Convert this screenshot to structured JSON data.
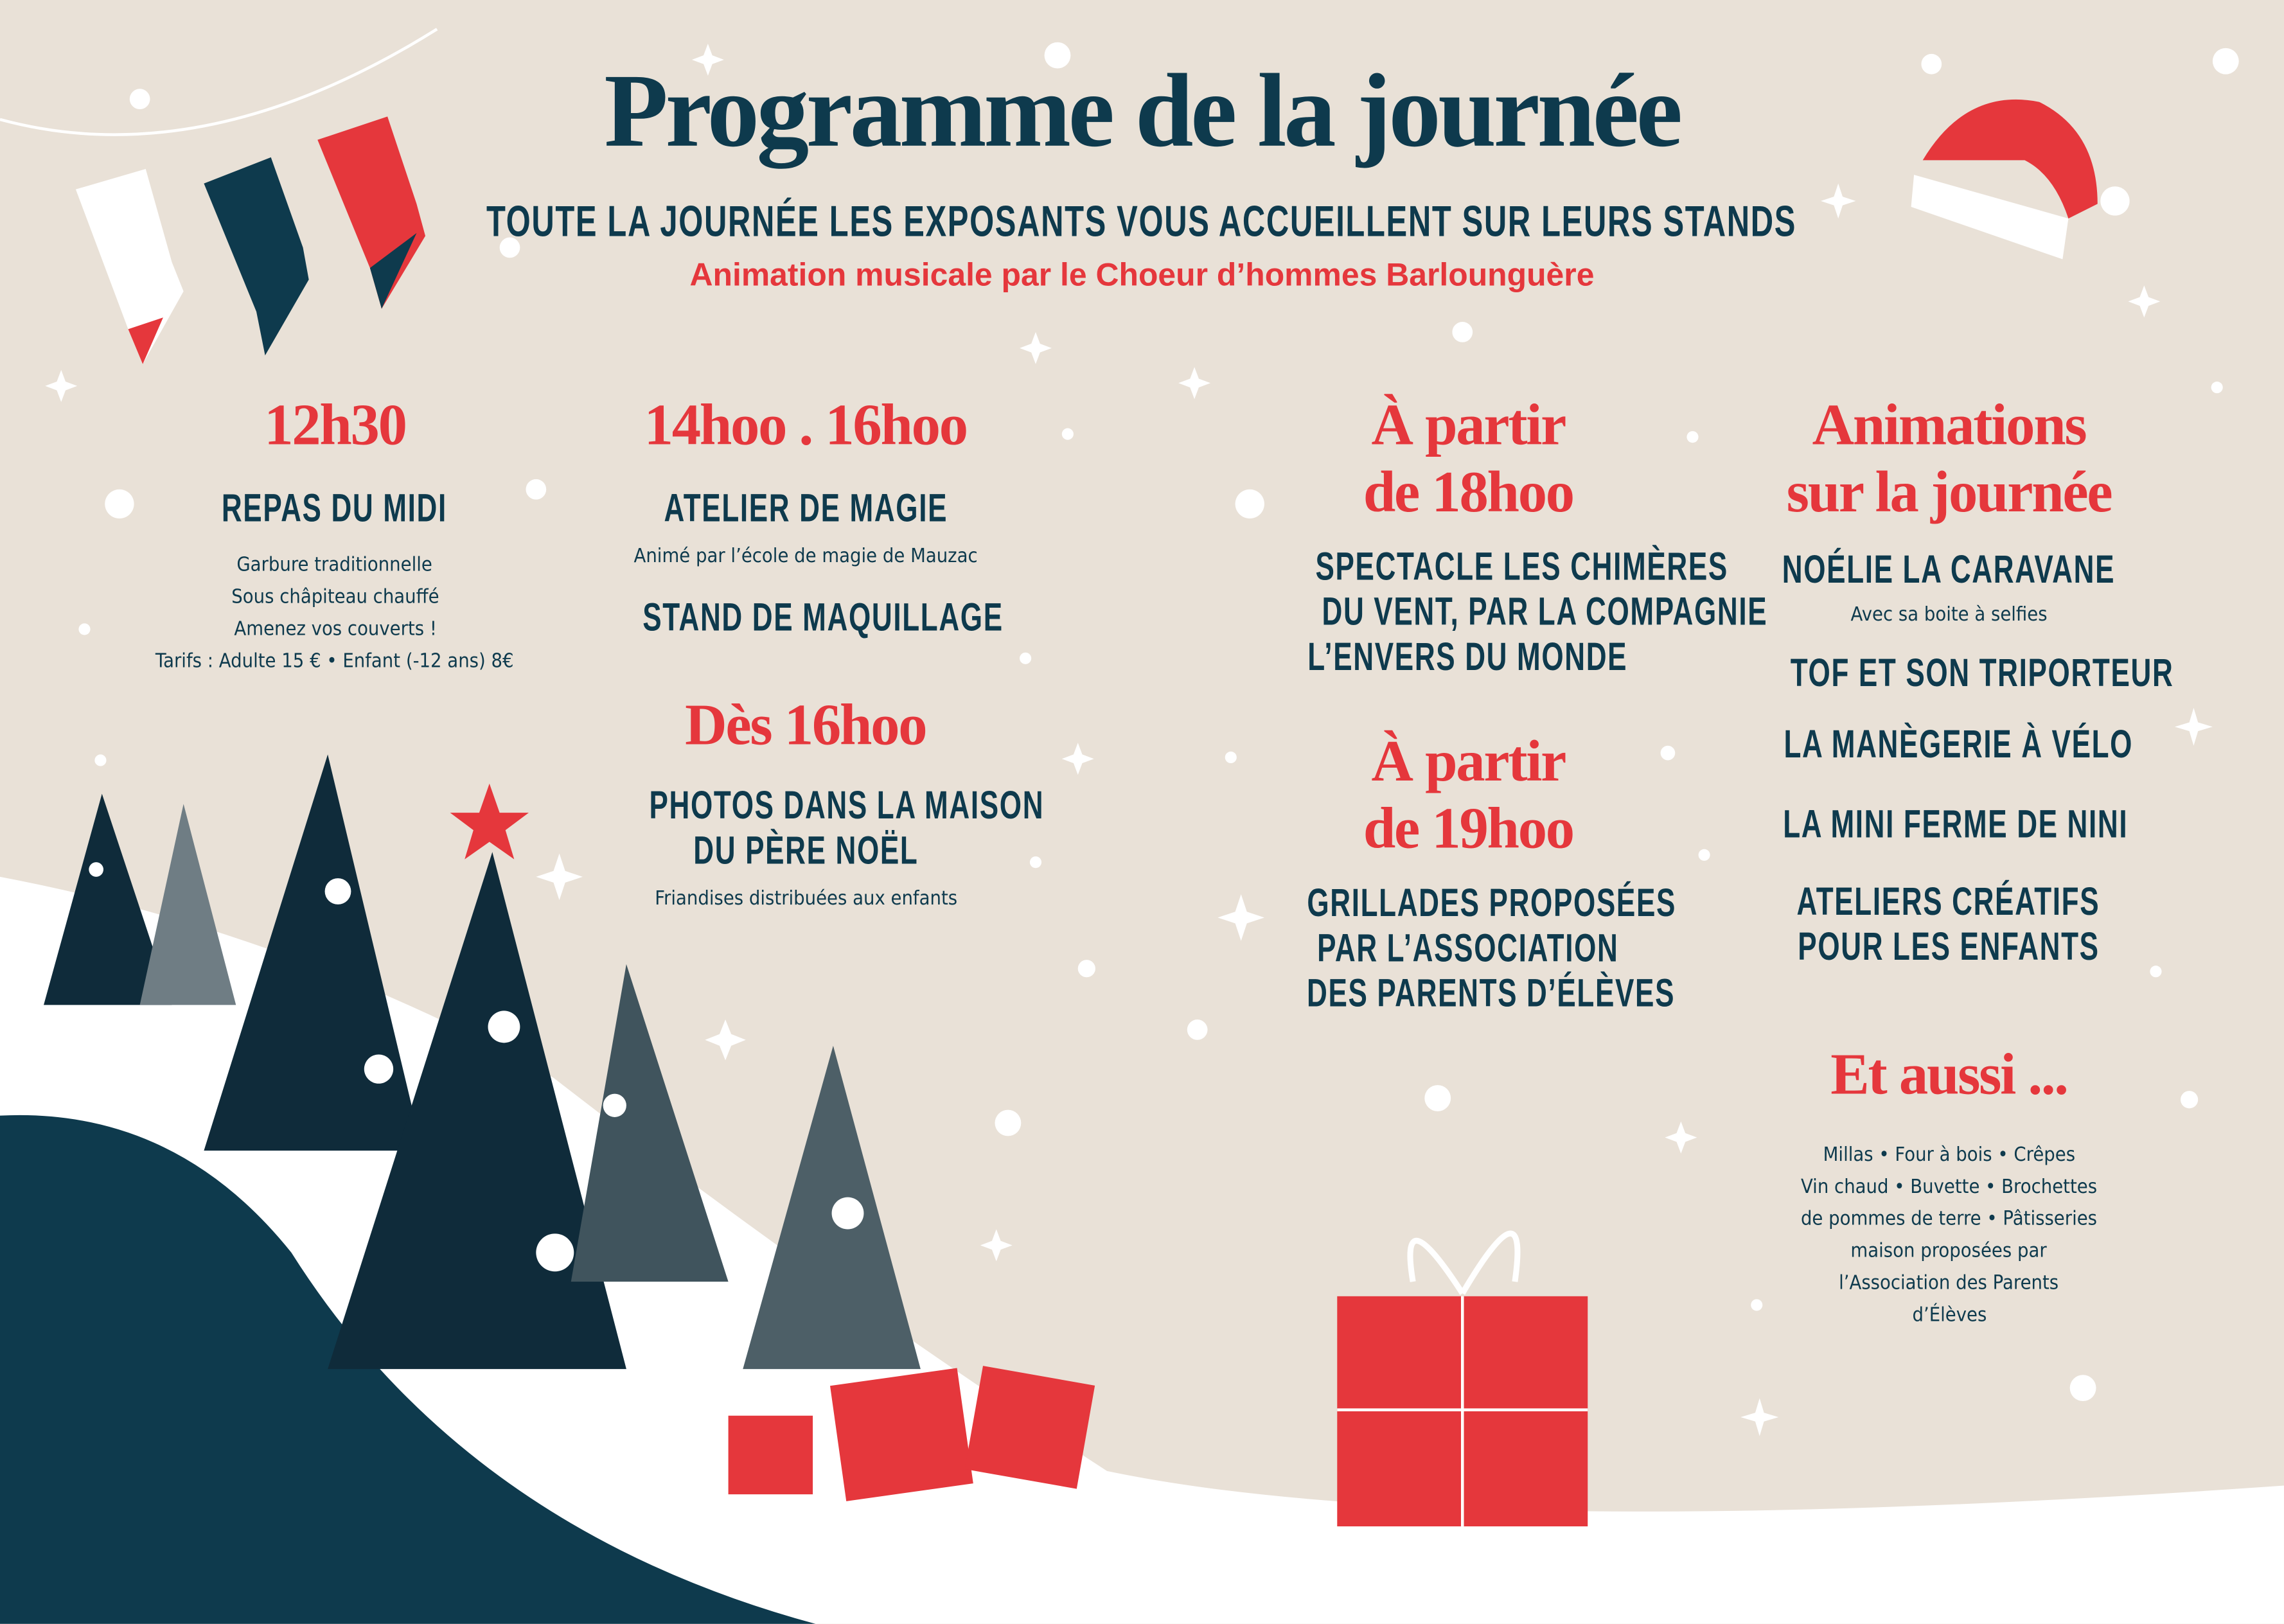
{
  "header": {
    "title": "Programme de la journée",
    "subtitle": "TOUTE LA JOURNÉE LES EXPOSANTS VOUS ACCUEILLENT SUR LEURS STANDS",
    "tagline": "Animation musicale par le Choeur d’hommes Barlounguère"
  },
  "col1": {
    "time": "12h30",
    "activity": "REPAS DU MIDI",
    "details": [
      "Garbure traditionnelle",
      "Sous châpiteau chauffé",
      "Amenez vos couverts !",
      "Tarifs : Adulte 15 € • Enfant (-12 ans) 8€"
    ]
  },
  "col2": {
    "time": "14hoo . 16hoo",
    "activity1": "ATELIER DE MAGIE",
    "detail1": "Animé par l’école de magie de Mauzac",
    "activity2": "STAND DE MAQUILLAGE",
    "time2": "Dès 16hoo",
    "activity3": [
      "PHOTOS DANS LA MAISON",
      "DU PÈRE NOËL"
    ],
    "detail3": "Friandises distribuées aux enfants"
  },
  "col3": {
    "time1": [
      "À partir",
      "de 18hoo"
    ],
    "activity1": [
      "SPECTACLE LES CHIMÈRES",
      "DU VENT, PAR LA COMPAGNIE",
      "L’ENVERS DU MONDE"
    ],
    "time2": [
      "À partir",
      "de 19hoo"
    ],
    "activity2": [
      "GRILLADES PROPOSÉES",
      "PAR L’ASSOCIATION",
      "DES PARENTS D’ÉLÈVES"
    ]
  },
  "col4": {
    "heading": [
      "Animations",
      "sur la journée"
    ],
    "items": [
      "NOÉLIE LA CARAVANE",
      "TOF ET SON TRIPORTEUR",
      "LA MANÈGERIE À VÉLO",
      "LA MINI FERME DE NINI"
    ],
    "item1_detail": "Avec sa boite à selfies",
    "item5": [
      "ATELIERS CRÉATIFS",
      "POUR LES ENFANTS"
    ],
    "also_heading": "Et aussi ...",
    "also_text": [
      "Millas • Four à bois • Crêpes",
      "Vin chaud • Buvette • Brochettes",
      "de pommes de terre • Pâtisseries",
      "maison proposées par",
      "l’Association des Parents",
      "d’Élèves"
    ]
  },
  "colors": {
    "background": "#e9e1d7",
    "navy": "#0e3a4d",
    "red": "#e5373c",
    "snow": "#ffffff"
  },
  "decorations": [
    "christmas-stockings",
    "santa-hat",
    "pine-trees",
    "snowy-hills",
    "gift-boxes",
    "snowflakes"
  ]
}
